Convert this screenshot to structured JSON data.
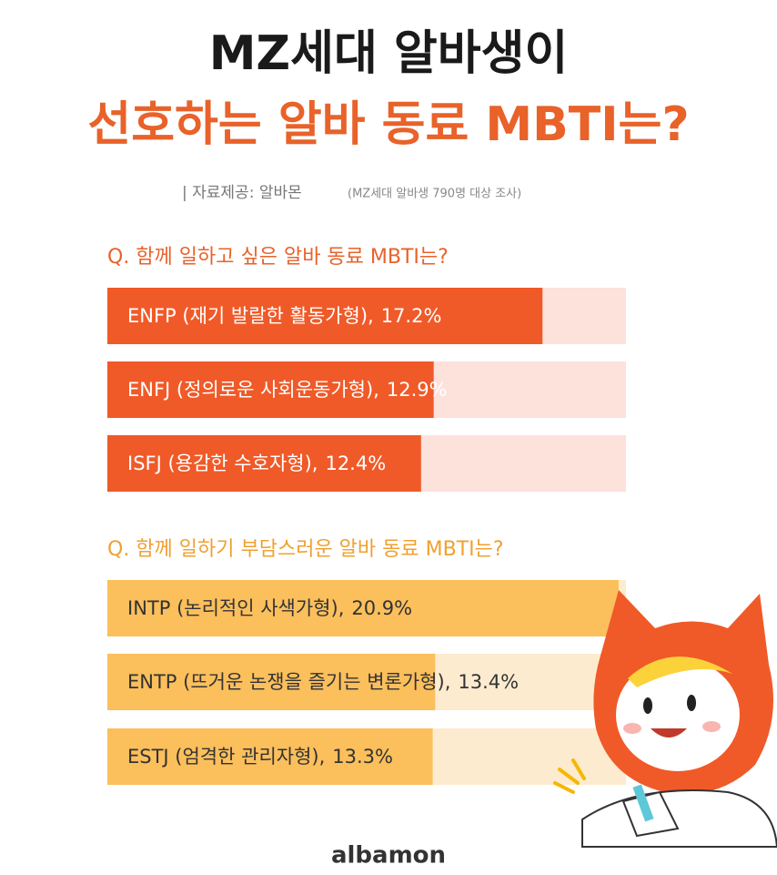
{
  "header": {
    "title_line1": "MZ세대 알바생이",
    "title_line2": "선호하는 알바 동료 MBTI는?",
    "source": "| 자료제공: 알바몬",
    "source_note": "(MZ세대 알바생 790명 대상 조사)"
  },
  "chart_data": [
    {
      "type": "bar",
      "orientation": "horizontal",
      "title": "Q. 함께 일하고 싶은 알바 동료 MBTI는?",
      "categories": [
        "ENFP (재기 발랄한 활동가형),",
        "ENFJ (정의로운 사회운동가형),",
        "ISFJ (용감한 수호자형),"
      ],
      "values": [
        17.2,
        12.9,
        12.4
      ],
      "value_labels": [
        "17.2%",
        "12.9%",
        "12.4%"
      ],
      "color": "#f05a28",
      "track_color": "#fde1db",
      "title_color": "#e8622a",
      "xlim": [
        0,
        20.5
      ]
    },
    {
      "type": "bar",
      "orientation": "horizontal",
      "title": "Q. 함께 일하기 부담스러운 알바 동료 MBTI는?",
      "categories": [
        "INTP (논리적인 사색가형),",
        "ENTP (뜨거운 논쟁을 즐기는 변론가형),",
        "ESTJ (엄격한 관리자형),"
      ],
      "values": [
        20.9,
        13.4,
        13.3
      ],
      "value_labels": [
        "20.9%",
        "13.4%",
        "13.3%"
      ],
      "color": "#fbbf5c",
      "track_color": "#fdebd0",
      "title_color": "#f0a030",
      "xlim": [
        0,
        21.2
      ]
    }
  ],
  "logo": "albamon"
}
